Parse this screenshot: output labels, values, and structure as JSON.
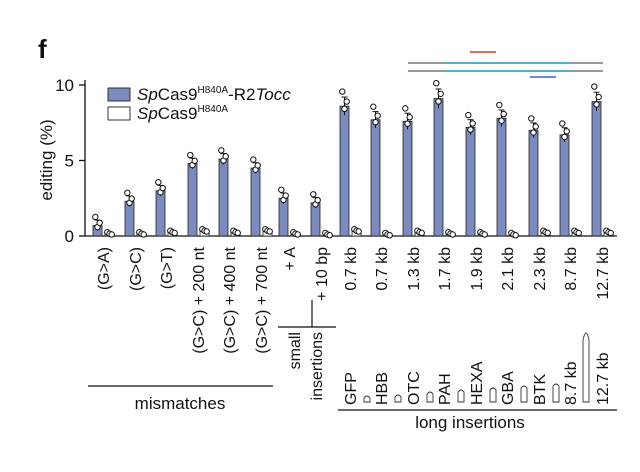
{
  "panel_label": "f",
  "colors": {
    "bar": "#7b8bbd",
    "control": "#ffffff",
    "grey_line": "#999999",
    "teal_line": "#46b4c9",
    "red_line": "#e06b58",
    "blue_line": "#6e8ad6"
  },
  "chart_data": {
    "type": "bar",
    "ylabel": "editing (%)",
    "ylim": [
      0,
      10
    ],
    "yticks": [
      0,
      5,
      10
    ],
    "legend": {
      "position": "top-left",
      "entries": [
        {
          "prefix": "Sp",
          "base": "Cas9",
          "sup": "H840A",
          "suffix": "-R2",
          "suffix_italic": "Tocc"
        },
        {
          "prefix": "Sp",
          "base": "Cas9",
          "sup": "H840A",
          "suffix": "",
          "suffix_italic": ""
        }
      ]
    },
    "categories": [
      "(G>A)",
      "(G>C)",
      "(G>T)",
      "(G>C) + 200 nt",
      "(G>C) + 400 nt",
      "(G>C) + 700 nt",
      "+ A",
      "+ 10 bp",
      "0.7 kb",
      "0.7 kb",
      "1.3 kb",
      "1.7 kb",
      "1.9 kb",
      "2.1 kb",
      "2.3 kb",
      "8.7 kb",
      "12.7 kb"
    ],
    "series": [
      {
        "name": "SpCas9H840A-R2Tocc",
        "values": [
          0.7,
          2.3,
          3.0,
          4.8,
          5.1,
          4.5,
          2.5,
          2.2,
          8.6,
          7.7,
          7.6,
          9.1,
          7.2,
          7.8,
          7.0,
          6.7,
          8.9
        ]
      },
      {
        "name": "SpCas9H840A",
        "values": [
          0.1,
          0.1,
          0.2,
          0.3,
          0.2,
          0.3,
          0.1,
          0.05,
          0.3,
          0.05,
          0.2,
          0.1,
          0.1,
          0.05,
          0.2,
          0.2,
          0.2
        ]
      }
    ],
    "groups": [
      {
        "label": "mismatches",
        "from": 0,
        "to": 5
      },
      {
        "label": "small insertions",
        "from": 6,
        "to": 7
      },
      {
        "label": "long insertions",
        "from": 8,
        "to": 16
      }
    ],
    "gene_labels": [
      "GFP",
      "HBB",
      "OTC",
      "PAH",
      "HEXA",
      "GBA",
      "BTK",
      "8.7 kb",
      "12.7 kb"
    ]
  }
}
